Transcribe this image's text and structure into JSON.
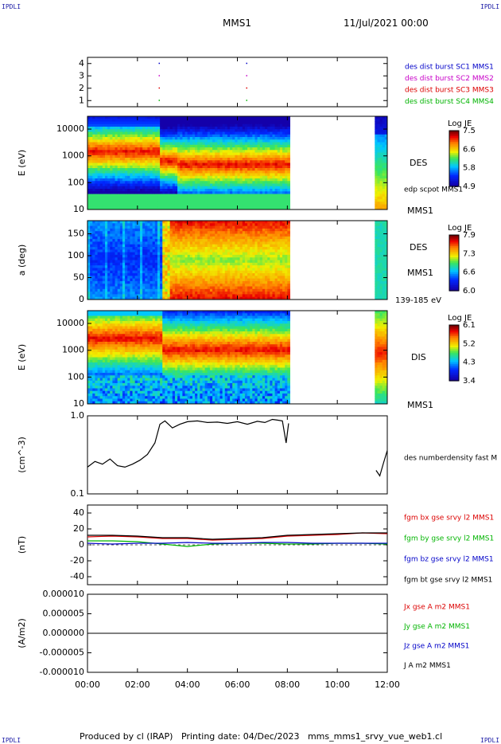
{
  "header": {
    "corner_tl": "IPDLI",
    "corner_tr": "IPDLI",
    "corner_bl": "IPDLI",
    "corner_br": "IPDLI",
    "mission": "MMS1",
    "date": "11/Jul/2021 00:00"
  },
  "footer": {
    "text": "Produced by cl (IRAP)   Printing date: 04/Dec/2023   mms_mms1_srvy_vue_web1.cl"
  },
  "x_axis": {
    "ticks": [
      "00:00",
      "02:00",
      "04:00",
      "06:00",
      "08:00",
      "10:00",
      "12:00"
    ],
    "range_hours": [
      0,
      12
    ]
  },
  "chart_data": [
    {
      "type": "scatter",
      "panel": "burst-intervals",
      "yticks": [
        "1",
        "2",
        "3",
        "4"
      ],
      "ylim": [
        0.5,
        4.5
      ],
      "series": [
        {
          "name": "des dist burst SC1 MMS1",
          "color": "#0000c8",
          "y": 4,
          "x_hours": [
            2.85,
            6.35
          ]
        },
        {
          "name": "des dist burst SC2 MMS2",
          "color": "#c800c8",
          "y": 3,
          "x_hours": [
            2.85,
            6.35
          ]
        },
        {
          "name": "des dist burst SC3 MMS3",
          "color": "#dc0000",
          "y": 2,
          "x_hours": [
            2.85,
            6.35
          ]
        },
        {
          "name": "des dist burst SC4 MMS4",
          "color": "#00b400",
          "y": 1,
          "x_hours": [
            2.85,
            6.35
          ]
        }
      ]
    },
    {
      "type": "heatmap",
      "panel": "des-energy",
      "ylabel": "E (eV)",
      "scale": "log",
      "yticks": [
        "10",
        "100",
        "1000",
        "10000"
      ],
      "ylim": [
        10,
        30000
      ],
      "colorbar": {
        "title": "Log JE",
        "ticks": [
          "7.5",
          "6.6",
          "5.8",
          "4.9"
        ]
      },
      "labels": [
        "DES",
        "edp scpot MMS1",
        "MMS1"
      ],
      "data_intervals_hours": [
        [
          0,
          8.05
        ],
        [
          11.55,
          12.0
        ]
      ]
    },
    {
      "type": "heatmap",
      "panel": "des-pitch",
      "ylabel": "a (deg)",
      "yticks": [
        "0",
        "50",
        "100",
        "150"
      ],
      "ylim": [
        0,
        180
      ],
      "colorbar": {
        "title": "Log JE",
        "ticks": [
          "7.9",
          "7.3",
          "6.6",
          "6.0"
        ]
      },
      "labels": [
        "DES",
        "MMS1",
        "139-185 eV"
      ],
      "data_intervals_hours": [
        [
          0,
          8.05
        ],
        [
          11.55,
          12.0
        ]
      ]
    },
    {
      "type": "heatmap",
      "panel": "dis-energy",
      "ylabel": "E (eV)",
      "scale": "log",
      "yticks": [
        "10",
        "100",
        "1000",
        "10000"
      ],
      "ylim": [
        10,
        30000
      ],
      "colorbar": {
        "title": "Log JE",
        "ticks": [
          "6.1",
          "5.2",
          "4.3",
          "3.4"
        ]
      },
      "labels": [
        "DIS",
        "MMS1"
      ],
      "data_intervals_hours": [
        [
          0,
          8.05
        ],
        [
          11.55,
          12.0
        ]
      ]
    },
    {
      "type": "line",
      "panel": "density",
      "ylabel": "(cm^-3)",
      "scale": "log",
      "yticks": [
        "0.1",
        "1.0"
      ],
      "ylim": [
        0.1,
        1.0
      ],
      "series": [
        {
          "name": "des numberdensity fast M",
          "color": "#000000",
          "x": [
            0,
            0.3,
            0.6,
            0.9,
            1.2,
            1.5,
            1.8,
            2.1,
            2.4,
            2.7,
            2.9,
            3.1,
            3.4,
            3.7,
            4.0,
            4.4,
            4.8,
            5.2,
            5.6,
            6.0,
            6.4,
            6.8,
            7.1,
            7.4,
            7.6,
            7.8,
            7.95,
            8.05,
            11.55,
            11.7,
            11.85,
            12.0
          ],
          "y": [
            0.22,
            0.26,
            0.24,
            0.28,
            0.23,
            0.22,
            0.24,
            0.27,
            0.32,
            0.45,
            0.78,
            0.86,
            0.7,
            0.78,
            0.84,
            0.86,
            0.82,
            0.83,
            0.8,
            0.84,
            0.78,
            0.85,
            0.82,
            0.9,
            0.88,
            0.86,
            0.45,
            0.8,
            0.2,
            0.17,
            0.25,
            0.36
          ]
        }
      ]
    },
    {
      "type": "line",
      "panel": "magnetic-field",
      "ylabel": "(nT)",
      "yticks": [
        "40",
        "20",
        "0",
        "-20",
        "-40"
      ],
      "ylim": [
        -50,
        50
      ],
      "series": [
        {
          "name": "fgm bx gse srvy l2 MMS1",
          "color": "#dc0000",
          "x": [
            0,
            1,
            2,
            3,
            4,
            5,
            6,
            7,
            8,
            9,
            10,
            11,
            12
          ],
          "y": [
            10,
            11,
            10,
            8,
            8,
            6,
            7,
            8,
            11,
            12,
            13,
            15,
            14
          ]
        },
        {
          "name": "fgm by gse srvy l2 MMS1",
          "color": "#00b400",
          "x": [
            0,
            1,
            2,
            3,
            4,
            5,
            6,
            7,
            8,
            9,
            10,
            11,
            12
          ],
          "y": [
            5,
            5,
            4,
            1,
            -2,
            1,
            2,
            2,
            1,
            1,
            2,
            2,
            1
          ]
        },
        {
          "name": "fgm bz gse srvy l2 MMS1",
          "color": "#0000c8",
          "x": [
            0,
            1,
            2,
            3,
            4,
            5,
            6,
            7,
            8,
            9,
            10,
            11,
            12
          ],
          "y": [
            2,
            1,
            2,
            2,
            3,
            2,
            2,
            3,
            3,
            2,
            2,
            2,
            2
          ]
        },
        {
          "name": "fgm bt gse srvy l2 MMS1",
          "color": "#000000",
          "x": [
            0,
            1,
            2,
            3,
            4,
            5,
            6,
            7,
            8,
            9,
            10,
            11,
            12
          ],
          "y": [
            12,
            12,
            11,
            9,
            9,
            7,
            8,
            9,
            12,
            13,
            14,
            15,
            15
          ]
        }
      ]
    },
    {
      "type": "line",
      "panel": "current-density",
      "ylabel": "(A/m2)",
      "yticks": [
        "0.000010",
        "0.000005",
        "0.000000",
        "-0.000005",
        "-0.000010"
      ],
      "ylim": [
        -1e-05,
        1e-05
      ],
      "series": [
        {
          "name": "Jx gse A m2 MMS1",
          "color": "#dc0000"
        },
        {
          "name": "Jy gse A m2 MMS1",
          "color": "#00b400"
        },
        {
          "name": "Jz gse A m2 MMS1",
          "color": "#0000c8"
        },
        {
          "name": "J A m2 MMS1",
          "color": "#000000"
        }
      ]
    }
  ]
}
